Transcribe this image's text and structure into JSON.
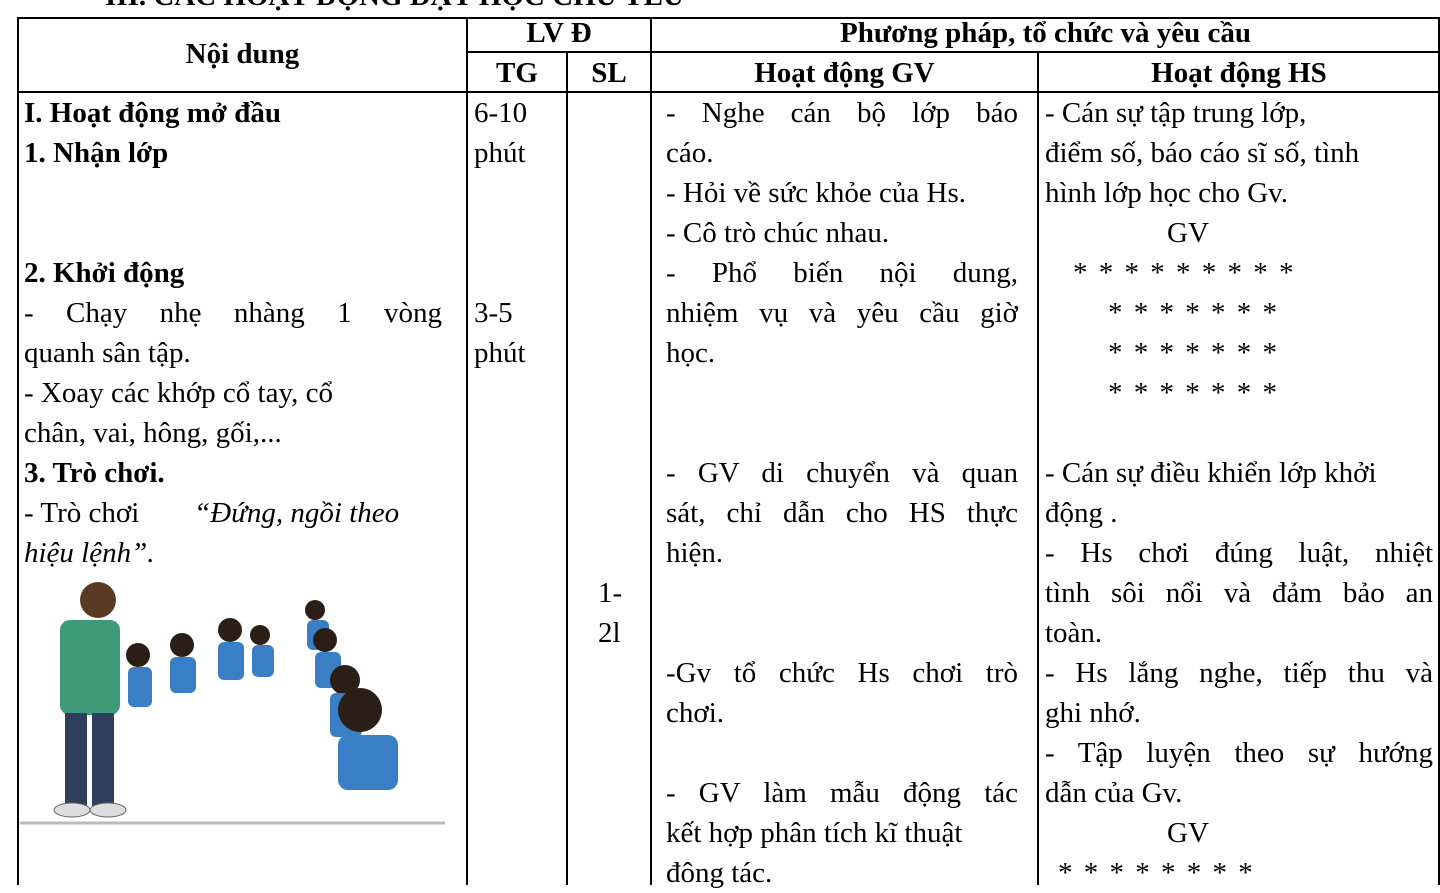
{
  "header": {
    "title": "III. CÁC HOẠT ĐỘNG DẠY HỌC CHỦ YẾU"
  },
  "table": {
    "headers": {
      "noi_dung": "Nội dung",
      "lvd": "LV Đ",
      "tg": "TG",
      "sl": "SL",
      "phuong_phap": "Phương pháp, tổ chức và yêu cầu",
      "gv": "Hoạt động GV",
      "hs": "Hoạt động HS"
    },
    "noi_dung": [
      "I. Hoạt động mở đầu",
      "1. Nhận lớp",
      "2. Khởi động",
      "- Chạy nhẹ nhàng 1 vòng",
      "quanh sân tập.",
      "- Xoay các khớp cổ tay, cổ",
      "chân, vai, hông, gối,...",
      "3. Trò chơi.",
      "- Trò chơi",
      "“Đứng, ngồi theo",
      "hiệu lệnh”."
    ],
    "tg": [
      "6-10",
      "phút",
      "3-5",
      "phút"
    ],
    "sl": [
      "1-",
      "2l"
    ],
    "gv": [
      "- Nghe cán bộ lớp báo",
      "cáo.",
      "- Hỏi về sức khỏe của Hs.",
      "- Cô trò chúc nhau.",
      "- Phổ biến nội dung,",
      "nhiệm vụ và yêu cầu giờ",
      "học.",
      "- GV di chuyển và quan",
      "sát, chỉ dẫn cho HS thực",
      "hiện.",
      "-Gv tổ chức Hs chơi trò",
      "chơi.",
      "- GV làm mẫu động tác",
      "kết hợp phân tích kĩ thuật",
      "đông tác."
    ],
    "hs": [
      "- Cán sự tập trung lớp,",
      "điểm số, báo cáo sĩ số, tình",
      "hình lớp học cho Gv.",
      "GV",
      "* * * * * * * * *",
      "* * * * * * *",
      "* * * * * * *",
      "* * * * * * *",
      "- Cán sự điều khiển lớp khởi",
      "động .",
      "- Hs chơi đúng luật, nhiệt",
      "tình sôi nổi và đảm bảo an",
      "toàn.",
      "- Hs lắng nghe, tiếp thu và",
      "ghi nhớ.",
      "- Tập luyện theo sự hướng",
      "dẫn của Gv.",
      "GV",
      "* * * * * * * *"
    ]
  }
}
